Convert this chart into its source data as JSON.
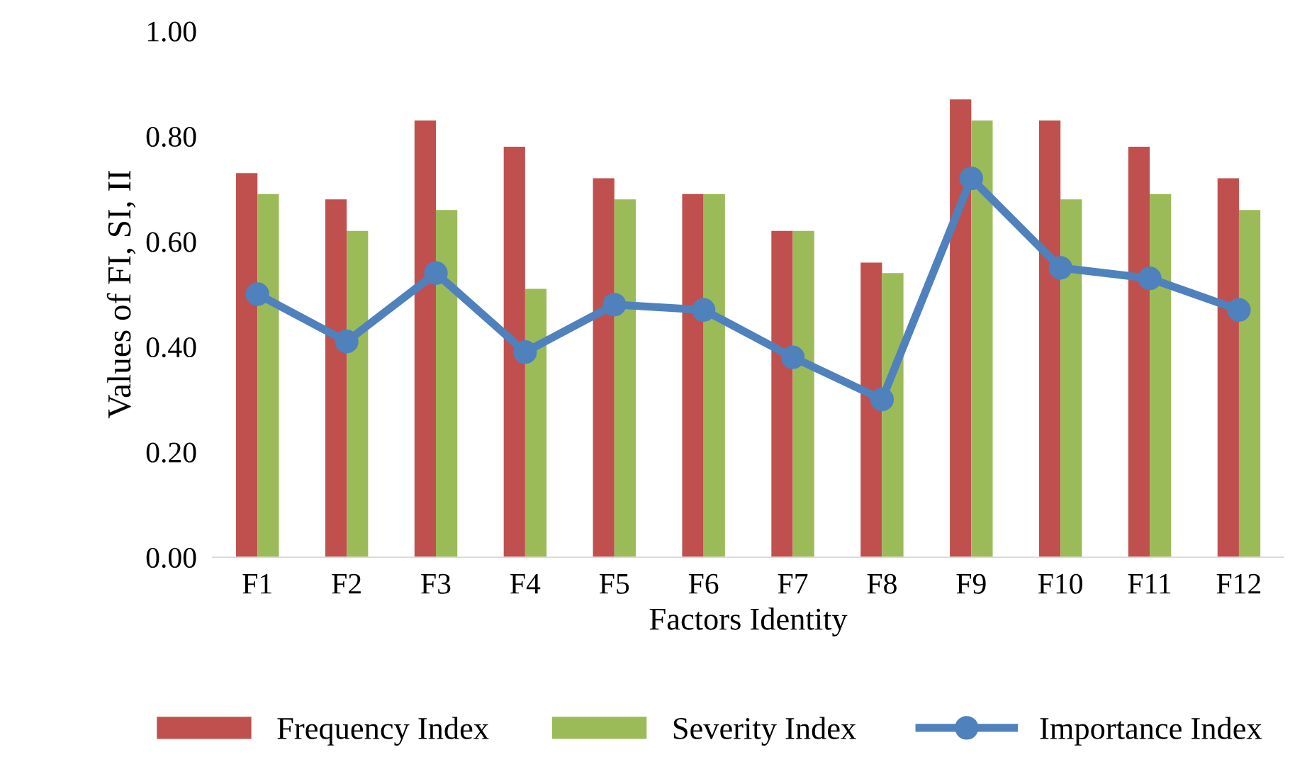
{
  "chart_data": {
    "type": "bar",
    "xlabel": "Factors Identity",
    "ylabel": "Values of FI, SI, II",
    "categories": [
      "F1",
      "F2",
      "F3",
      "F4",
      "F5",
      "F6",
      "F7",
      "F8",
      "F9",
      "F10",
      "F11",
      "F12"
    ],
    "series": [
      {
        "name": "Frequency Index",
        "color": "#c0504d",
        "values": [
          0.73,
          0.68,
          0.83,
          0.78,
          0.72,
          0.69,
          0.62,
          0.56,
          0.87,
          0.83,
          0.78,
          0.72
        ]
      },
      {
        "name": "Severity Index",
        "color": "#9bbb59",
        "values": [
          0.69,
          0.62,
          0.66,
          0.51,
          0.68,
          0.69,
          0.62,
          0.54,
          0.83,
          0.68,
          0.69,
          0.66
        ]
      },
      {
        "name": "Importance Index",
        "type": "line",
        "color": "#4f81bd",
        "marker": "circle",
        "values": [
          0.5,
          0.41,
          0.54,
          0.39,
          0.48,
          0.47,
          0.38,
          0.3,
          0.72,
          0.55,
          0.53,
          0.47
        ]
      }
    ],
    "ylim": [
      0,
      1
    ],
    "yticks": [
      {
        "value": 0,
        "label": "0.00"
      },
      {
        "value": 0.2,
        "label": "0.20"
      },
      {
        "value": 0.4,
        "label": "0.40"
      },
      {
        "value": 0.6,
        "label": "0.60"
      },
      {
        "value": 0.8,
        "label": "0.80"
      },
      {
        "value": 1,
        "label": "1.00"
      }
    ],
    "grid": false,
    "legend": "bottom"
  }
}
